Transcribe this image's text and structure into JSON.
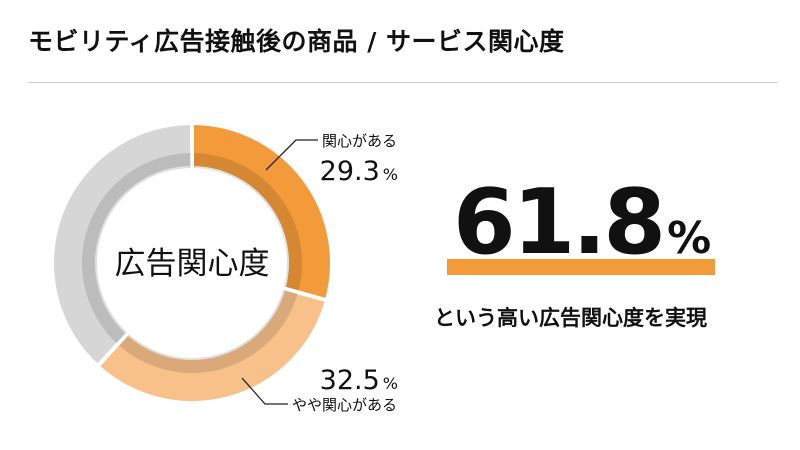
{
  "page": {
    "title": "モビリティ広告接触後の商品 / サービス関心度"
  },
  "chart_data": {
    "type": "pie",
    "center_label": "広告関心度",
    "slices": [
      {
        "label": "関心がある",
        "value": 29.3,
        "display": "29.3",
        "unit": "%",
        "color": "#f39a3a"
      },
      {
        "label": "やや関心がある",
        "value": 32.5,
        "display": "32.5",
        "unit": "%",
        "color": "#f8c18a"
      },
      {
        "label": "",
        "value": 38.2,
        "display": "",
        "unit": "",
        "color": "#d6d6d6"
      }
    ]
  },
  "highlight": {
    "value": "61.8",
    "unit": "%",
    "caption": "という高い広告関心度を実現"
  }
}
